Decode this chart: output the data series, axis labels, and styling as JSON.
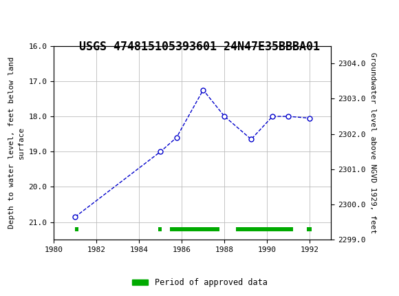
{
  "title": "USGS 474815105393601 24N47E35BBBA01",
  "header_color": "#1a6b3c",
  "x_data": [
    1981.0,
    1985.0,
    1985.75,
    1987.0,
    1988.0,
    1989.25,
    1990.25,
    1991.0,
    1992.0
  ],
  "y_data": [
    20.85,
    19.0,
    18.6,
    17.25,
    18.0,
    18.65,
    18.0,
    18.0,
    18.05
  ],
  "xlim": [
    1980,
    1993
  ],
  "ylim_left_top": 16.0,
  "ylim_left_bottom": 21.5,
  "ylim_right_top": 2304.5,
  "ylim_right_bottom": 2299.0,
  "yticks_left": [
    16.0,
    17.0,
    18.0,
    19.0,
    20.0,
    21.0
  ],
  "yticks_right": [
    2304.0,
    2303.0,
    2302.0,
    2301.0,
    2300.0,
    2299.0
  ],
  "xticks": [
    1980,
    1982,
    1984,
    1986,
    1988,
    1990,
    1992
  ],
  "ylabel_left": "Depth to water level, feet below land\nsurface",
  "ylabel_right": "Groundwater level above NGVD 1929, feet",
  "line_color": "#0000cc",
  "marker_facecolor": "#ffffff",
  "marker_edgecolor": "#0000cc",
  "marker_size": 5,
  "grid_color": "#bbbbbb",
  "bg_color": "#ffffff",
  "plot_bg_color": "#ffffff",
  "approved_periods": [
    [
      1981.0,
      1981.15
    ],
    [
      1984.88,
      1985.05
    ],
    [
      1985.45,
      1987.75
    ],
    [
      1988.55,
      1991.2
    ],
    [
      1991.85,
      1992.1
    ]
  ],
  "legend_label": "Period of approved data",
  "legend_color": "#00aa00",
  "title_fontsize": 12,
  "axis_fontsize": 8,
  "tick_fontsize": 8
}
